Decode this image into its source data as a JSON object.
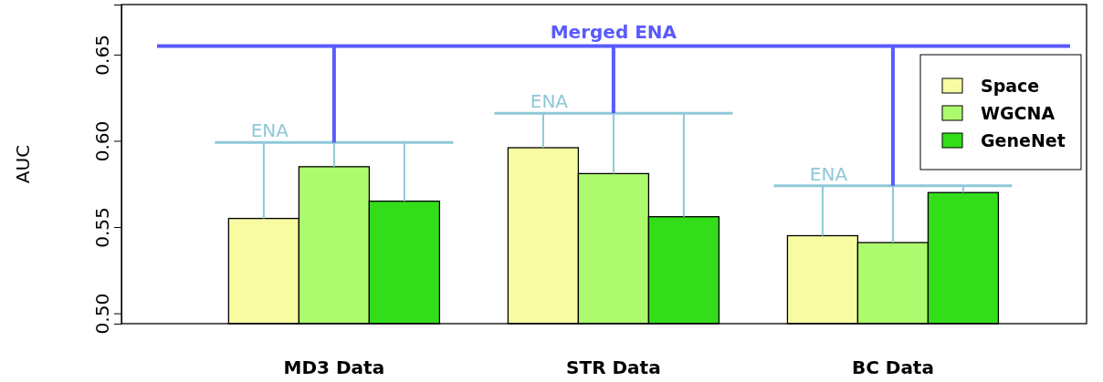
{
  "chart_data": {
    "type": "bar",
    "ylabel": "AUC",
    "categories": [
      "MD3 Data",
      "STR Data",
      "BC Data"
    ],
    "series": [
      {
        "name": "Space",
        "color": "#f7fca3",
        "values": [
          0.555,
          0.596,
          0.545
        ]
      },
      {
        "name": "WGCNA",
        "color": "#acfa6e",
        "values": [
          0.585,
          0.581,
          0.541
        ]
      },
      {
        "name": "GeneNet",
        "color": "#33dd1a",
        "values": [
          0.565,
          0.556,
          0.57
        ]
      }
    ],
    "ylim": [
      0.494,
      0.679
    ],
    "yticks": [
      {
        "value": 0.5,
        "label": "0.50"
      },
      0.55,
      {
        "value": 0.6,
        "label": "0.60"
      },
      0.65
    ],
    "ref_lines": [
      {
        "axis": "y",
        "value": 0.599,
        "label": "ENA",
        "color": "#8ec8d8"
      },
      {
        "axis": "y",
        "value": 0.616,
        "label": "ENA",
        "color": "#8ec8d8"
      },
      {
        "axis": "y",
        "value": 0.574,
        "label": "ENA",
        "color": "#8ec8d8"
      },
      {
        "axis": "y",
        "value": 0.655,
        "label": "Merged ENA",
        "color": "#5a5aff"
      }
    ],
    "legend": "top right",
    "grid": false
  }
}
